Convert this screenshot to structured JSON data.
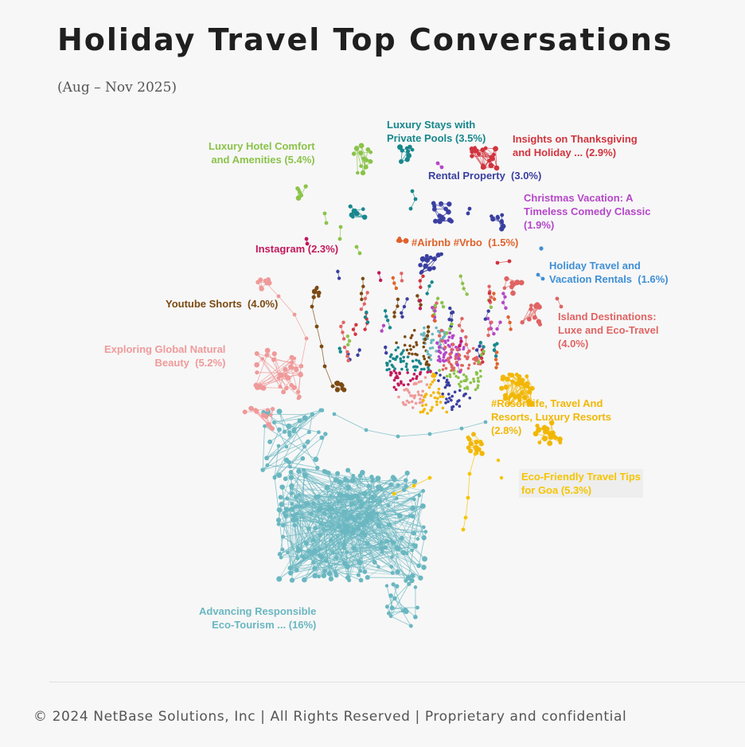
{
  "header": {
    "title": "Holiday Travel Top Conversations",
    "date_range": "(Aug – Nov 2025)"
  },
  "clusters": [
    {
      "id": "luxury-hotel",
      "label": "Luxury Hotel Comfort\nand Amenities (5.4%)",
      "share": 5.4,
      "color": "#8bc34a",
      "align": "right"
    },
    {
      "id": "luxury-stays",
      "label": "Luxury Stays with\nPrivate Pools (3.5%)",
      "share": 3.5,
      "color": "#17878c",
      "align": "left"
    },
    {
      "id": "thanksgiving",
      "label": "Insights on Thanksgiving\nand Holiday ... (2.9%)",
      "share": 2.9,
      "color": "#d1343e",
      "align": "left"
    },
    {
      "id": "rental-property",
      "label": "Rental Property  (3.0%)",
      "share": 3.0,
      "color": "#3a3fa0",
      "align": "left"
    },
    {
      "id": "christmas",
      "label": "Christmas Vacation: A\nTimeless Comedy Classic\n(1.9%)",
      "share": 1.9,
      "color": "#b547c9",
      "align": "left"
    },
    {
      "id": "instagram",
      "label": "Instagram (2.3%)",
      "share": 2.3,
      "color": "#c2185b",
      "align": "left"
    },
    {
      "id": "airbnb",
      "label": "#Airbnb #Vrbo  (1.5%)",
      "share": 1.5,
      "color": "#e0622a",
      "align": "left"
    },
    {
      "id": "holiday-rentals",
      "label": "Holiday Travel and\nVacation Rentals  (1.6%)",
      "share": 1.6,
      "color": "#3f8fd6",
      "align": "left"
    },
    {
      "id": "youtube",
      "label": "Youtube Shorts  (4.0%)",
      "share": 4.0,
      "color": "#7b4a12",
      "align": "left"
    },
    {
      "id": "island",
      "label": "Island Destinations:\nLuxe and Eco-Travel\n(4.0%)",
      "share": 4.0,
      "color": "#e06464",
      "align": "left"
    },
    {
      "id": "natural-beauty",
      "label": "Exploring Global Natural\nBeauty  (5.2%)",
      "share": 5.2,
      "color": "#ef9a9a",
      "align": "right"
    },
    {
      "id": "resortlife",
      "label": "#Resortlife, Travel And\nResorts, Luxury Resorts\n(2.8%)",
      "share": 2.8,
      "color": "#f2b705",
      "align": "left"
    },
    {
      "id": "goa",
      "label": "Eco-Friendly Travel Tips\nfor Goa (5.3%)",
      "share": 5.3,
      "color": "#f5c400",
      "align": "left"
    },
    {
      "id": "eco-tourism",
      "label": "Advancing Responsible\nEco-Tourism ... (16%)",
      "share": 16,
      "color": "#6ab7c1",
      "align": "right"
    }
  ],
  "footer": {
    "text": "© 2024 NetBase Solutions, Inc | All Rights Reserved | Proprietary and confidential"
  }
}
